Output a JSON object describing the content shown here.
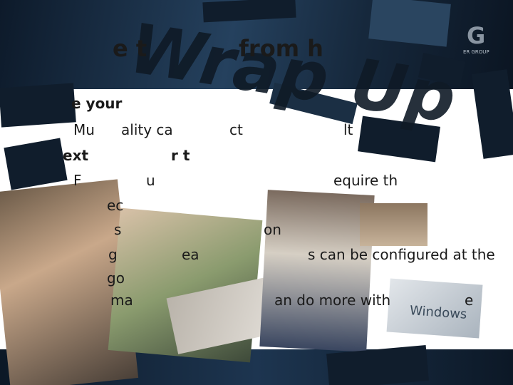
{
  "slide": {
    "title_fragments": [
      "e t",
      "from h"
    ],
    "watermark": "Wrap Up",
    "logo": {
      "mark": "G",
      "text": "ER GROUP"
    },
    "lines": [
      [
        "e your"
      ],
      [
        "Mu",
        "ality ca",
        "ct",
        "lt"
      ],
      [
        "ext",
        "r t"
      ],
      [
        "F",
        "u",
        "equire th"
      ],
      [
        "ec"
      ],
      [
        "s",
        "on"
      ],
      [
        "g",
        "ea",
        "s can be configured at the"
      ],
      [
        "go"
      ],
      [
        "ma",
        "an do more with",
        "e"
      ]
    ],
    "photo_text": "Windows"
  }
}
